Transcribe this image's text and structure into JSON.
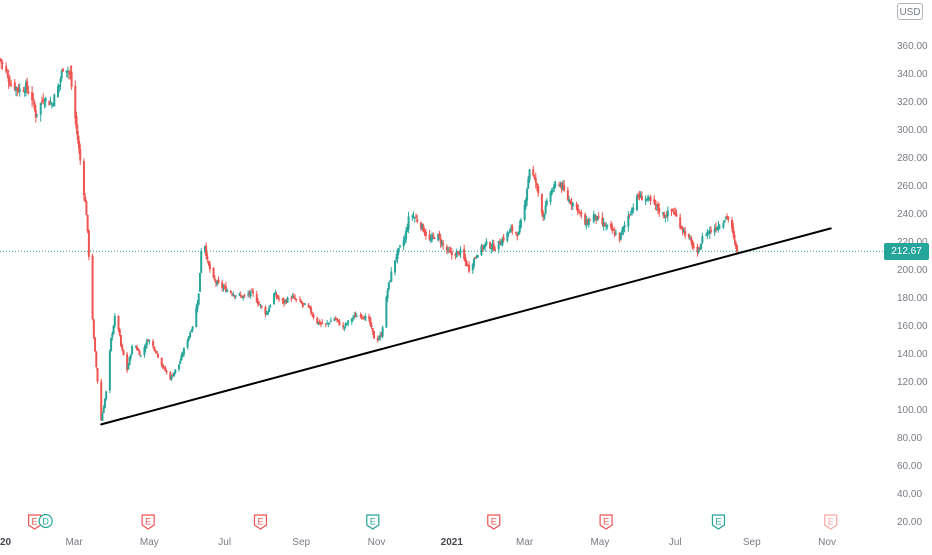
{
  "currency": "USD",
  "last_price": "212.67",
  "colors": {
    "up": "#26a69a",
    "down": "#ef5350",
    "trendline": "#000000",
    "price_line": "#26a69a",
    "axis_text": "#787b86",
    "earnings": "#ef5350",
    "earnings_positive": "#26a69a"
  },
  "events": [
    {
      "label": "E",
      "date": "2020-01-29",
      "kind": "earnings",
      "color": "red"
    },
    {
      "label": "D",
      "date": "2020-02-07",
      "kind": "dividend",
      "color": "green"
    },
    {
      "label": "E",
      "date": "2020-04-30",
      "kind": "earnings",
      "color": "red"
    },
    {
      "label": "E",
      "date": "2020-07-30",
      "kind": "earnings",
      "color": "red"
    },
    {
      "label": "E",
      "date": "2020-10-29",
      "kind": "earnings",
      "color": "green"
    },
    {
      "label": "E",
      "date": "2021-02-04",
      "kind": "earnings",
      "color": "red"
    },
    {
      "label": "E",
      "date": "2021-05-06",
      "kind": "earnings",
      "color": "red"
    },
    {
      "label": "E",
      "date": "2021-08-05",
      "kind": "earnings",
      "color": "green"
    },
    {
      "label": "E",
      "date": "2021-11-04",
      "kind": "earnings",
      "color": "light-red"
    }
  ],
  "chart_data": {
    "type": "candlestick",
    "x_start": "2020-01-01",
    "x_end": "2021-11-05",
    "ylim": [
      20,
      386
    ],
    "y_ticks": [
      "20.00",
      "40.00",
      "60.00",
      "80.00",
      "100.00",
      "120.00",
      "140.00",
      "160.00",
      "180.00",
      "200.00",
      "220.00",
      "240.00",
      "260.00",
      "280.00",
      "300.00",
      "320.00",
      "340.00",
      "360.00"
    ],
    "x_ticks": [
      {
        "label": "2020",
        "date": "2020-01-01",
        "bold": true
      },
      {
        "label": "Mar",
        "date": "2020-03-01"
      },
      {
        "label": "May",
        "date": "2020-05-01"
      },
      {
        "label": "Jul",
        "date": "2020-07-01"
      },
      {
        "label": "Sep",
        "date": "2020-09-01"
      },
      {
        "label": "Nov",
        "date": "2020-11-01"
      },
      {
        "label": "2021",
        "date": "2021-01-01",
        "bold": true
      },
      {
        "label": "Mar",
        "date": "2021-03-01"
      },
      {
        "label": "May",
        "date": "2021-05-01"
      },
      {
        "label": "Jul",
        "date": "2021-07-01"
      },
      {
        "label": "Sep",
        "date": "2021-09-01"
      },
      {
        "label": "Nov",
        "date": "2021-11-01"
      }
    ],
    "close_path": [
      [
        "2020-01-01",
        350
      ],
      [
        "2020-01-06",
        340
      ],
      [
        "2020-01-10",
        332
      ],
      [
        "2020-01-17",
        328
      ],
      [
        "2020-01-22",
        330
      ],
      [
        "2020-01-27",
        322
      ],
      [
        "2020-01-30",
        310
      ],
      [
        "2020-02-05",
        322
      ],
      [
        "2020-02-12",
        318
      ],
      [
        "2020-02-18",
        332
      ],
      [
        "2020-02-22",
        348
      ],
      [
        "2020-02-27",
        338
      ],
      [
        "2020-03-03",
        300
      ],
      [
        "2020-03-07",
        270
      ],
      [
        "2020-03-11",
        240
      ],
      [
        "2020-03-14",
        195
      ],
      [
        "2020-03-17",
        150
      ],
      [
        "2020-03-20",
        120
      ],
      [
        "2020-03-23",
        92
      ],
      [
        "2020-03-27",
        112
      ],
      [
        "2020-03-31",
        150
      ],
      [
        "2020-04-04",
        170
      ],
      [
        "2020-04-08",
        145
      ],
      [
        "2020-04-13",
        128
      ],
      [
        "2020-04-18",
        148
      ],
      [
        "2020-04-24",
        138
      ],
      [
        "2020-04-30",
        150
      ],
      [
        "2020-05-06",
        142
      ],
      [
        "2020-05-12",
        130
      ],
      [
        "2020-05-18",
        122
      ],
      [
        "2020-05-25",
        132
      ],
      [
        "2020-06-01",
        150
      ],
      [
        "2020-06-06",
        162
      ],
      [
        "2020-06-10",
        182
      ],
      [
        "2020-06-13",
        230
      ],
      [
        "2020-06-17",
        205
      ],
      [
        "2020-06-22",
        192
      ],
      [
        "2020-06-27",
        188
      ],
      [
        "2020-07-03",
        185
      ],
      [
        "2020-07-09",
        182
      ],
      [
        "2020-07-16",
        180
      ],
      [
        "2020-07-23",
        183
      ],
      [
        "2020-07-29",
        175
      ],
      [
        "2020-08-04",
        168
      ],
      [
        "2020-08-10",
        182
      ],
      [
        "2020-08-17",
        176
      ],
      [
        "2020-08-24",
        180
      ],
      [
        "2020-08-31",
        176
      ],
      [
        "2020-09-07",
        172
      ],
      [
        "2020-09-14",
        162
      ],
      [
        "2020-09-21",
        160
      ],
      [
        "2020-09-28",
        165
      ],
      [
        "2020-10-05",
        158
      ],
      [
        "2020-10-12",
        165
      ],
      [
        "2020-10-19",
        168
      ],
      [
        "2020-10-26",
        163
      ],
      [
        "2020-10-31",
        148
      ],
      [
        "2020-11-05",
        153
      ],
      [
        "2020-11-10",
        185
      ],
      [
        "2020-11-15",
        205
      ],
      [
        "2020-11-20",
        215
      ],
      [
        "2020-11-24",
        222
      ],
      [
        "2020-11-28",
        240
      ],
      [
        "2020-12-03",
        236
      ],
      [
        "2020-12-08",
        230
      ],
      [
        "2020-12-14",
        220
      ],
      [
        "2020-12-20",
        225
      ],
      [
        "2020-12-26",
        215
      ],
      [
        "2021-01-01",
        210
      ],
      [
        "2021-01-08",
        212
      ],
      [
        "2021-01-15",
        200
      ],
      [
        "2021-01-22",
        212
      ],
      [
        "2021-01-29",
        218
      ],
      [
        "2021-02-05",
        215
      ],
      [
        "2021-02-12",
        222
      ],
      [
        "2021-02-18",
        228
      ],
      [
        "2021-02-24",
        225
      ],
      [
        "2021-03-01",
        245
      ],
      [
        "2021-03-05",
        272
      ],
      [
        "2021-03-10",
        262
      ],
      [
        "2021-03-16",
        238
      ],
      [
        "2021-03-22",
        255
      ],
      [
        "2021-03-29",
        262
      ],
      [
        "2021-04-05",
        250
      ],
      [
        "2021-04-12",
        245
      ],
      [
        "2021-04-19",
        232
      ],
      [
        "2021-04-26",
        238
      ],
      [
        "2021-05-03",
        232
      ],
      [
        "2021-05-10",
        228
      ],
      [
        "2021-05-17",
        222
      ],
      [
        "2021-05-24",
        238
      ],
      [
        "2021-06-01",
        252
      ],
      [
        "2021-06-08",
        250
      ],
      [
        "2021-06-15",
        245
      ],
      [
        "2021-06-22",
        238
      ],
      [
        "2021-06-29",
        242
      ],
      [
        "2021-07-06",
        230
      ],
      [
        "2021-07-13",
        220
      ],
      [
        "2021-07-19",
        210
      ],
      [
        "2021-07-24",
        225
      ],
      [
        "2021-07-31",
        228
      ],
      [
        "2021-08-06",
        232
      ],
      [
        "2021-08-12",
        238
      ],
      [
        "2021-08-16",
        228
      ],
      [
        "2021-08-19",
        215
      ],
      [
        "2021-08-21",
        212.67
      ]
    ],
    "trendline": {
      "from": [
        "2020-03-23",
        89
      ],
      "to": [
        "2021-11-04",
        229
      ]
    },
    "price_line": 212.67
  }
}
